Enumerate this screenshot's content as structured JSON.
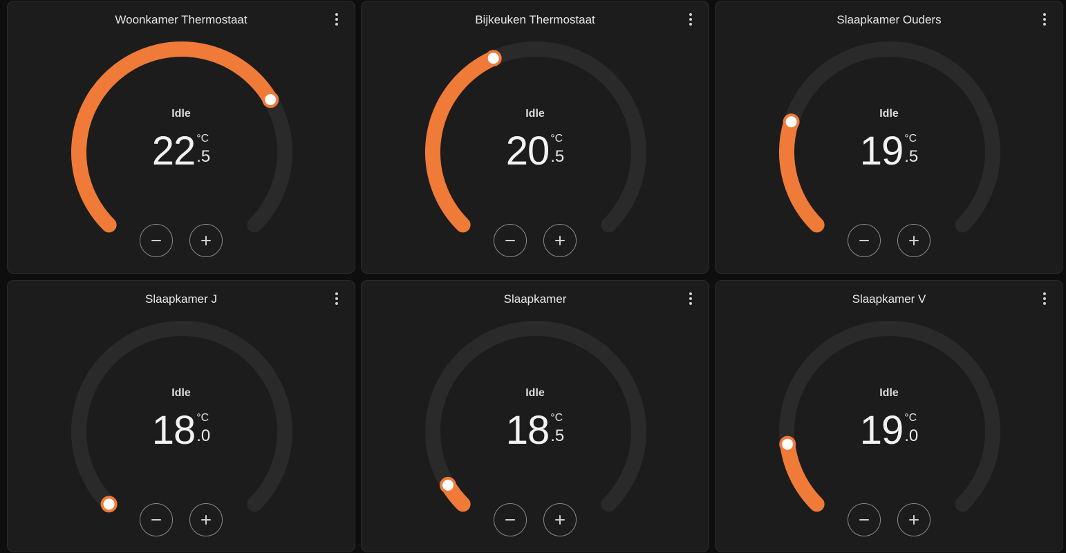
{
  "theme": {
    "accent": "#f07a37",
    "track": "#2a2a2a",
    "knob": "#ffffff"
  },
  "thermostats": [
    {
      "title": "Woonkamer Thermostaat",
      "state": "Idle",
      "temp_int": "22",
      "temp_dec": ".5",
      "unit": "°C",
      "setpoint_fraction": 0.72
    },
    {
      "title": "Bijkeuken Thermostaat",
      "state": "Idle",
      "temp_int": "20",
      "temp_dec": ".5",
      "unit": "°C",
      "setpoint_fraction": 0.41
    },
    {
      "title": "Slaapkamer Ouders",
      "state": "Idle",
      "temp_int": "19",
      "temp_dec": ".5",
      "unit": "°C",
      "setpoint_fraction": 0.23
    },
    {
      "title": "Slaapkamer J",
      "state": "Idle",
      "temp_int": "18",
      "temp_dec": ".0",
      "unit": "°C",
      "setpoint_fraction": 0.0
    },
    {
      "title": "Slaapkamer",
      "state": "Idle",
      "temp_int": "18",
      "temp_dec": ".5",
      "unit": "°C",
      "setpoint_fraction": 0.05
    },
    {
      "title": "Slaapkamer V",
      "state": "Idle",
      "temp_int": "19",
      "temp_dec": ".0",
      "unit": "°C",
      "setpoint_fraction": 0.14
    }
  ],
  "icons": {
    "menu": "more-vertical-icon",
    "decrease": "minus-icon",
    "increase": "plus-icon"
  }
}
